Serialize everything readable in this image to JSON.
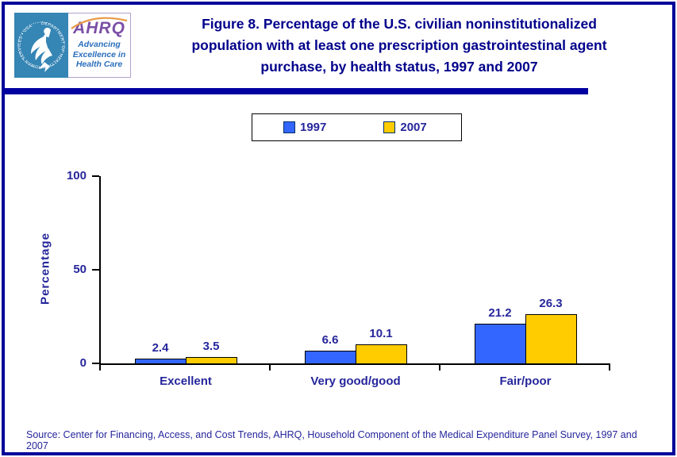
{
  "logo": {
    "seal_text": "DEPARTMENT OF HEALTH & HUMAN SERVICES • USA",
    "brand": "AHRQ",
    "tagline_lines": [
      "Advancing",
      "Excellence in",
      "Health Care"
    ]
  },
  "title_lines": [
    "Figure 8. Percentage of the U.S. civilian noninstitutionalized",
    "population with at least one prescription gastrointestinal agent",
    "purchase, by health status, 1997 and 2007"
  ],
  "chart_data": {
    "type": "bar",
    "title": "Figure 8. Percentage of the U.S. civilian noninstitutionalized population with at least one prescription gastrointestinal agent purchase, by health status, 1997 and 2007",
    "categories": [
      "Excellent",
      "Very good/good",
      "Fair/poor"
    ],
    "series": [
      {
        "name": "1997",
        "color": "#3366FF",
        "values": [
          2.4,
          6.6,
          21.2
        ]
      },
      {
        "name": "2007",
        "color": "#FFCC00",
        "values": [
          3.5,
          10.1,
          26.3
        ]
      }
    ],
    "xlabel": "",
    "ylabel": "Percentage",
    "ylim": [
      0,
      100
    ],
    "yticks": [
      0,
      50,
      100
    ],
    "grid": false,
    "legend_position": "top-center",
    "colors": {
      "accent_navy": "#000099",
      "title_navy": "#00008B",
      "chart_text": "#26269C",
      "axis_black": "#000000"
    }
  },
  "source": {
    "text": "Source: Center for Financing, Access, and Cost Trends, AHRQ, Household Component of the Medical Expenditure Panel Survey, 1997 and 2007"
  }
}
